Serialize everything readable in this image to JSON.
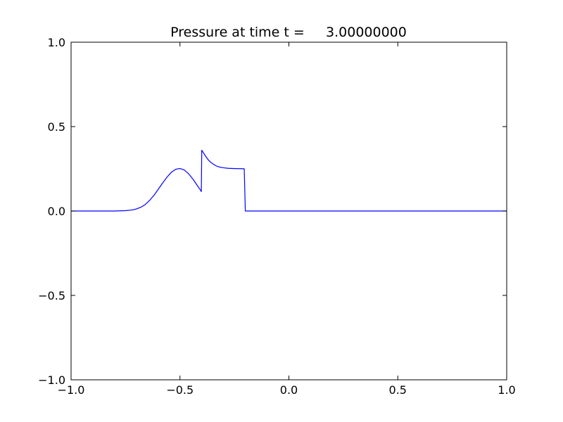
{
  "chart_data": {
    "type": "line",
    "title": "Pressure at time t =     3.00000000",
    "xlabel": "",
    "ylabel": "",
    "xlim": [
      -1.0,
      1.0
    ],
    "ylim": [
      -1.0,
      1.0
    ],
    "grid": false,
    "xticks": [
      -1.0,
      -0.5,
      0.0,
      0.5,
      1.0
    ],
    "xtick_labels": [
      "−1.0",
      "−0.5",
      "0.0",
      "0.5",
      "1.0"
    ],
    "yticks": [
      -1.0,
      -0.5,
      0.0,
      0.5,
      1.0
    ],
    "ytick_labels": [
      "−1.0",
      "−0.5",
      "0.0",
      "0.5",
      "1.0"
    ],
    "series": [
      {
        "color": "#0000ff",
        "x": [
          -1.0,
          -0.8,
          -0.75,
          -0.72,
          -0.7,
          -0.68,
          -0.66,
          -0.64,
          -0.62,
          -0.6,
          -0.58,
          -0.56,
          -0.54,
          -0.52,
          -0.5,
          -0.48,
          -0.46,
          -0.44,
          -0.42,
          -0.405,
          -0.402,
          -0.4,
          -0.39,
          -0.38,
          -0.37,
          -0.36,
          -0.35,
          -0.34,
          -0.33,
          -0.32,
          -0.31,
          -0.3,
          -0.28,
          -0.26,
          -0.24,
          -0.22,
          -0.205,
          -0.202,
          -0.2,
          0.0,
          0.5,
          1.0
        ],
        "y": [
          0.0,
          0.0,
          0.002,
          0.006,
          0.012,
          0.022,
          0.038,
          0.062,
          0.092,
          0.128,
          0.165,
          0.2,
          0.229,
          0.247,
          0.252,
          0.243,
          0.22,
          0.188,
          0.15,
          0.122,
          0.115,
          0.36,
          0.34,
          0.32,
          0.303,
          0.29,
          0.28,
          0.272,
          0.265,
          0.261,
          0.258,
          0.256,
          0.253,
          0.252,
          0.251,
          0.251,
          0.25,
          0.1,
          0.0,
          0.0,
          0.0,
          0.0
        ]
      }
    ]
  }
}
